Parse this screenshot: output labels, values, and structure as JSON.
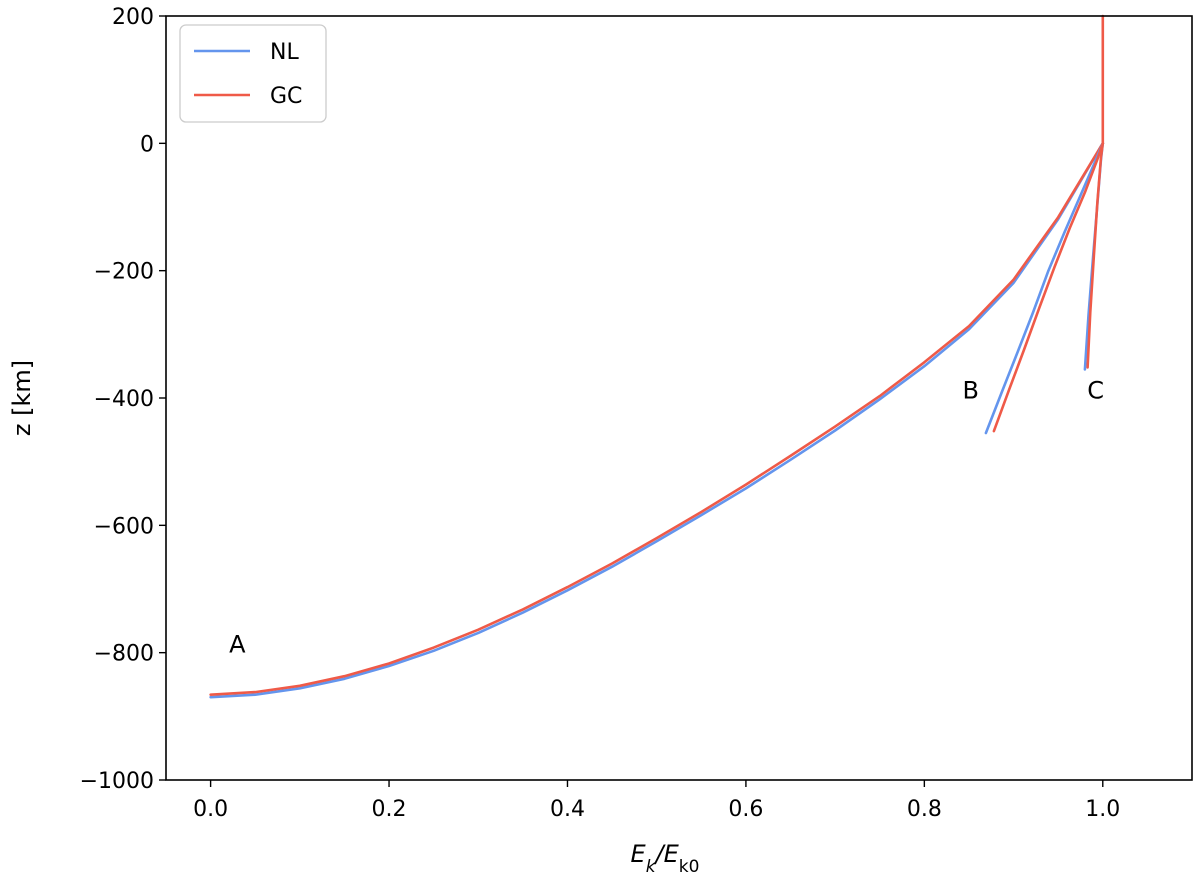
{
  "chart_data": {
    "type": "line",
    "title": "",
    "xlabel_main": "E",
    "xlabel_sub1": "k",
    "xlabel_mid": "/E",
    "xlabel_sub2": "k0",
    "ylabel": "z [km]",
    "xlim": [
      -0.05,
      1.1
    ],
    "ylim": [
      -1000,
      200
    ],
    "xticks": [
      0.0,
      0.2,
      0.4,
      0.6,
      0.8,
      1.0
    ],
    "xtick_labels": [
      "0.0",
      "0.2",
      "0.4",
      "0.6",
      "0.8",
      "1.0"
    ],
    "yticks": [
      200,
      0,
      -200,
      -400,
      -600,
      -800,
      -1000
    ],
    "ytick_labels": [
      "200",
      "0",
      "−200",
      "−400",
      "−600",
      "−800",
      "−1000"
    ],
    "grid": false,
    "legend": {
      "placement": "top-left",
      "entries": [
        {
          "name": "NL",
          "color": "#6495ED"
        },
        {
          "name": "GC",
          "color": "#EF5A48"
        }
      ]
    },
    "annotations": [
      {
        "text": "A",
        "x": 0.03,
        "y": -787
      },
      {
        "text": "B",
        "x": 0.852,
        "y": -388
      },
      {
        "text": "C",
        "x": 0.992,
        "y": -388
      }
    ],
    "series": [
      {
        "name": "NL",
        "curve": "A",
        "color": "#6495ED",
        "x": [
          0.0,
          0.05,
          0.1,
          0.15,
          0.2,
          0.25,
          0.3,
          0.35,
          0.4,
          0.45,
          0.5,
          0.55,
          0.6,
          0.65,
          0.7,
          0.75,
          0.8,
          0.85,
          0.9,
          0.95,
          1.0
        ],
        "y": [
          -870,
          -866,
          -856,
          -841,
          -821,
          -797,
          -769,
          -737,
          -702,
          -665,
          -625,
          -584,
          -542,
          -497,
          -451,
          -402,
          -350,
          -292,
          -219,
          -119,
          0
        ]
      },
      {
        "name": "GC",
        "curve": "A",
        "color": "#EF5A48",
        "x": [
          0.0,
          0.05,
          0.1,
          0.15,
          0.2,
          0.25,
          0.3,
          0.35,
          0.4,
          0.45,
          0.5,
          0.55,
          0.6,
          0.65,
          0.7,
          0.75,
          0.8,
          0.85,
          0.9,
          0.95,
          1.0
        ],
        "y": [
          -866,
          -862,
          -852,
          -837,
          -817,
          -792,
          -764,
          -732,
          -697,
          -660,
          -620,
          -579,
          -536,
          -491,
          -445,
          -397,
          -344,
          -287,
          -214,
          -116,
          0
        ]
      },
      {
        "name": "NL",
        "curve": "B",
        "color": "#6495ED",
        "x": [
          0.869,
          0.887,
          0.904,
          0.922,
          0.939,
          0.957,
          0.974,
          0.991,
          1.0
        ],
        "y": [
          -455,
          -390,
          -330,
          -265,
          -200,
          -140,
          -85,
          -30,
          0
        ]
      },
      {
        "name": "GC",
        "curve": "B",
        "color": "#EF5A48",
        "x": [
          0.878,
          0.895,
          0.912,
          0.929,
          0.946,
          0.963,
          0.98,
          0.994,
          1.0
        ],
        "y": [
          -452,
          -387,
          -323,
          -258,
          -194,
          -133,
          -77,
          -25,
          0
        ]
      },
      {
        "name": "NL",
        "curve": "C",
        "color": "#6495ED",
        "x": [
          0.98,
          0.984,
          0.989,
          0.994,
          0.998,
          1.0
        ],
        "y": [
          -355,
          -270,
          -180,
          -95,
          -25,
          0
        ]
      },
      {
        "name": "GC",
        "curve": "C",
        "color": "#EF5A48",
        "x": [
          0.983,
          0.986,
          0.99,
          0.994,
          0.998,
          1.0
        ],
        "y": [
          -352,
          -265,
          -176,
          -92,
          -22,
          0
        ]
      },
      {
        "name": "GC",
        "curve": "upper",
        "color": "#EF5A48",
        "x": [
          1.0,
          1.0
        ],
        "y": [
          0,
          200
        ]
      }
    ]
  }
}
